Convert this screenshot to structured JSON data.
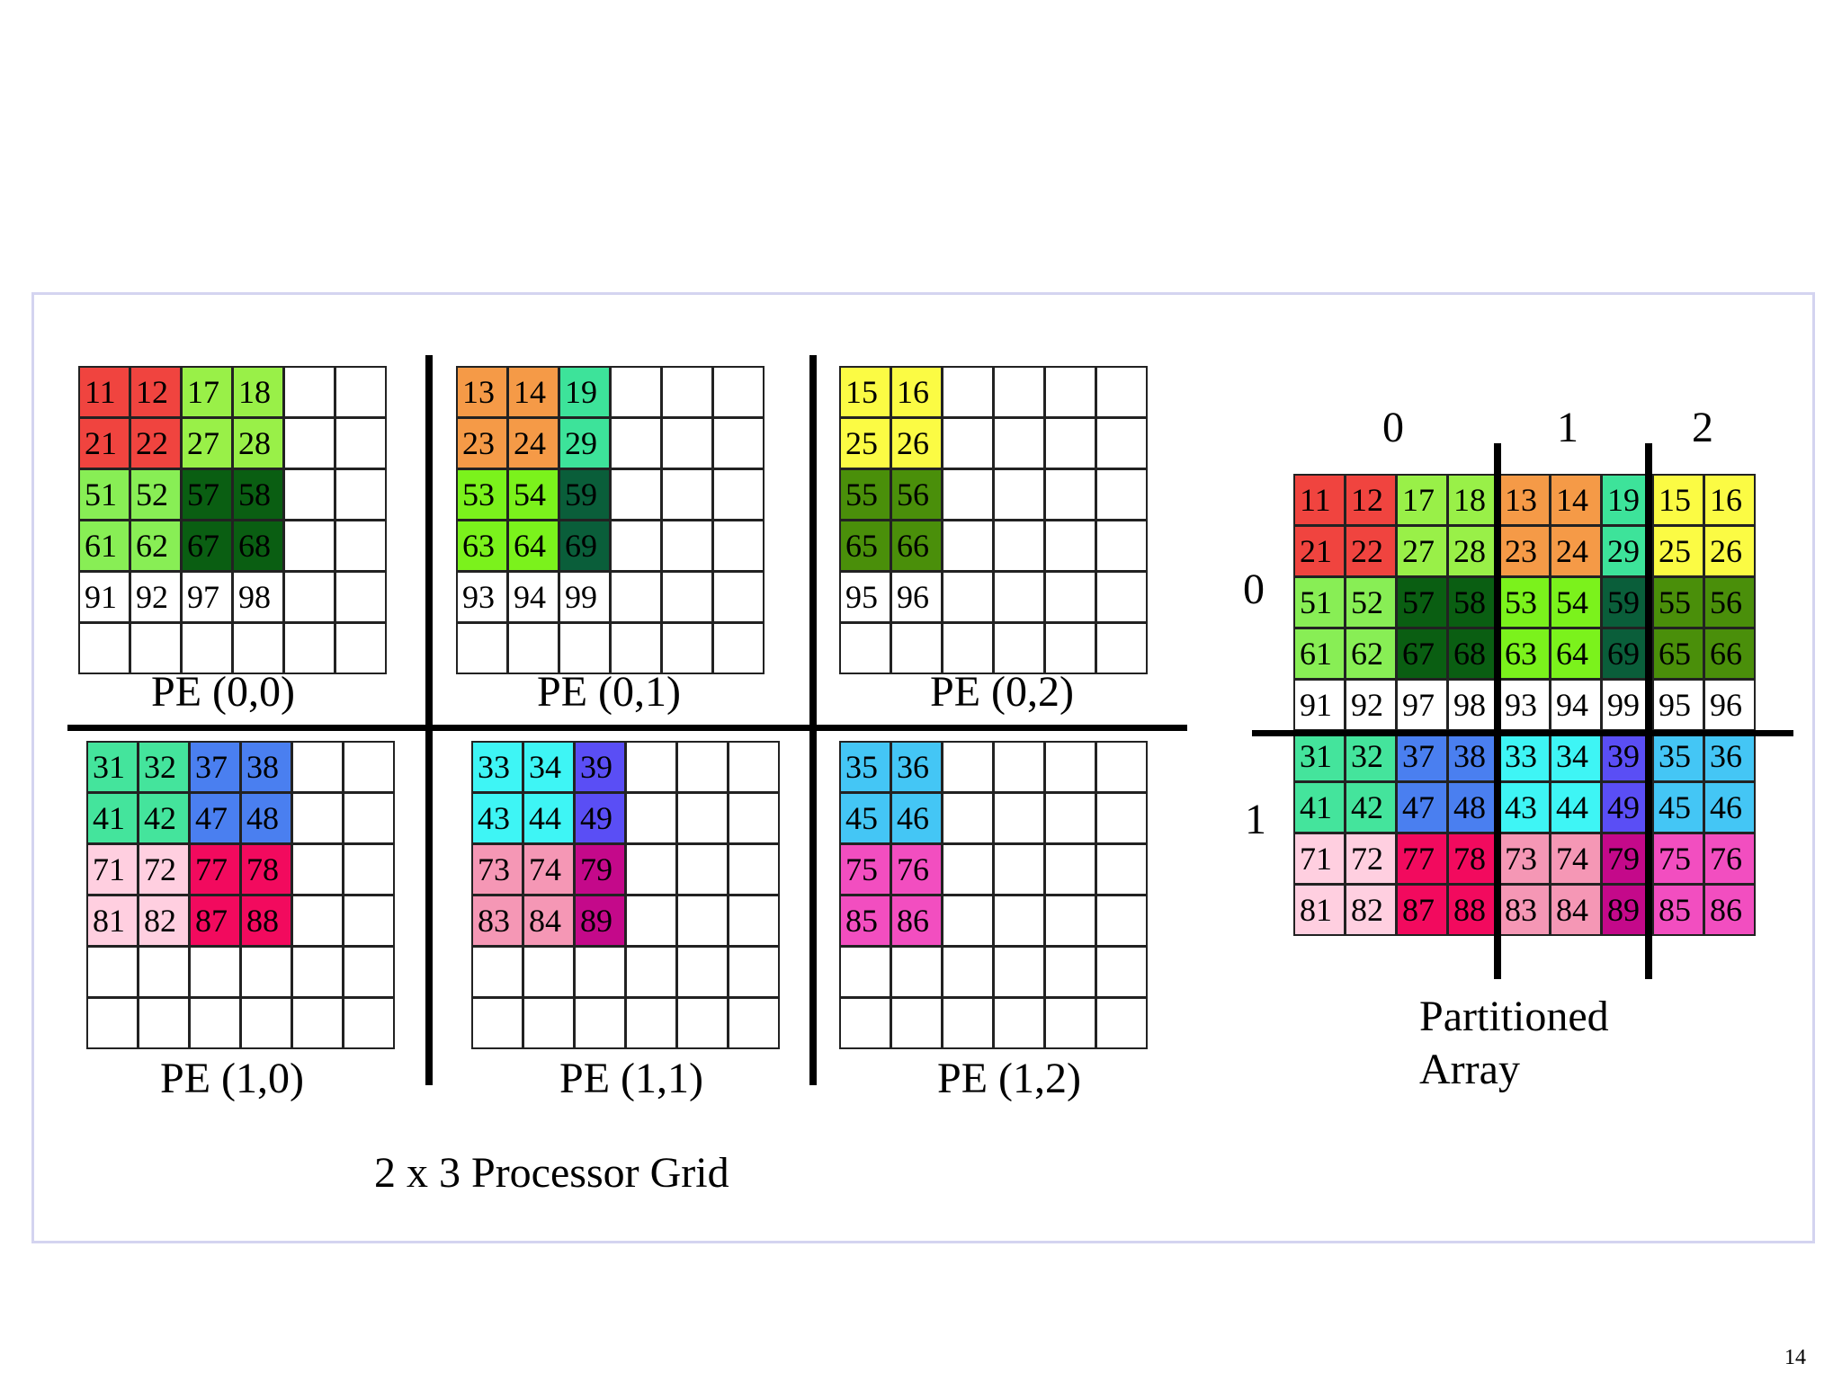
{
  "colors": {
    "r": "#f0443f",
    "lg": "#99f048",
    "g2": "#88ee55",
    "dg": "#0a5e12",
    "or": "#f59a47",
    "tl": "#3de39a",
    "br": "#7bf21c",
    "dt": "#0a5e3a",
    "ye": "#fbfb44",
    "ol": "#4a8f0a",
    "sg": "#44e49c",
    "bl": "#4a7ff0",
    "lp": "#ffcfe0",
    "cr": "#f20a5e",
    "cy": "#3ef5f5",
    "vi": "#5a4ef5",
    "pk": "#f597b5",
    "mg": "#c4098a",
    "sk": "#44c6f5",
    "hp": "#f24ec0",
    "wh": "#ffffff"
  },
  "pes": [
    {
      "label": "PE (0,0)",
      "cells": [
        [
          "11",
          "12",
          "17",
          "18",
          "",
          ""
        ],
        [
          "21",
          "22",
          "27",
          "28",
          "",
          ""
        ],
        [
          "51",
          "52",
          "57",
          "58",
          "",
          ""
        ],
        [
          "61",
          "62",
          "67",
          "68",
          "",
          ""
        ],
        [
          "91",
          "92",
          "97",
          "98",
          "",
          ""
        ],
        [
          "",
          "",
          "",
          "",
          "",
          ""
        ]
      ],
      "fills": [
        [
          "r",
          "r",
          "lg",
          "lg",
          "wh",
          "wh"
        ],
        [
          "r",
          "r",
          "lg",
          "lg",
          "wh",
          "wh"
        ],
        [
          "g2",
          "g2",
          "dg",
          "dg",
          "wh",
          "wh"
        ],
        [
          "g2",
          "g2",
          "dg",
          "dg",
          "wh",
          "wh"
        ],
        [
          "wh",
          "wh",
          "wh",
          "wh",
          "wh",
          "wh"
        ],
        [
          "wh",
          "wh",
          "wh",
          "wh",
          "wh",
          "wh"
        ]
      ]
    },
    {
      "label": "PE (0,1)",
      "cells": [
        [
          "13",
          "14",
          "19",
          "",
          "",
          ""
        ],
        [
          "23",
          "24",
          "29",
          "",
          "",
          ""
        ],
        [
          "53",
          "54",
          "59",
          "",
          "",
          ""
        ],
        [
          "63",
          "64",
          "69",
          "",
          "",
          ""
        ],
        [
          "93",
          "94",
          "99",
          "",
          "",
          ""
        ],
        [
          "",
          "",
          "",
          "",
          "",
          ""
        ]
      ],
      "fills": [
        [
          "or",
          "or",
          "tl",
          "wh",
          "wh",
          "wh"
        ],
        [
          "or",
          "or",
          "tl",
          "wh",
          "wh",
          "wh"
        ],
        [
          "br",
          "br",
          "dt",
          "wh",
          "wh",
          "wh"
        ],
        [
          "br",
          "br",
          "dt",
          "wh",
          "wh",
          "wh"
        ],
        [
          "wh",
          "wh",
          "wh",
          "wh",
          "wh",
          "wh"
        ],
        [
          "wh",
          "wh",
          "wh",
          "wh",
          "wh",
          "wh"
        ]
      ]
    },
    {
      "label": "PE (0,2)",
      "cells": [
        [
          "15",
          "16",
          "",
          "",
          "",
          ""
        ],
        [
          "25",
          "26",
          "",
          "",
          "",
          ""
        ],
        [
          "55",
          "56",
          "",
          "",
          "",
          ""
        ],
        [
          "65",
          "66",
          "",
          "",
          "",
          ""
        ],
        [
          "95",
          "96",
          "",
          "",
          "",
          ""
        ],
        [
          "",
          "",
          "",
          "",
          "",
          ""
        ]
      ],
      "fills": [
        [
          "ye",
          "ye",
          "wh",
          "wh",
          "wh",
          "wh"
        ],
        [
          "ye",
          "ye",
          "wh",
          "wh",
          "wh",
          "wh"
        ],
        [
          "ol",
          "ol",
          "wh",
          "wh",
          "wh",
          "wh"
        ],
        [
          "ol",
          "ol",
          "wh",
          "wh",
          "wh",
          "wh"
        ],
        [
          "wh",
          "wh",
          "wh",
          "wh",
          "wh",
          "wh"
        ],
        [
          "wh",
          "wh",
          "wh",
          "wh",
          "wh",
          "wh"
        ]
      ]
    },
    {
      "label": "PE (1,0)",
      "cells": [
        [
          "31",
          "32",
          "37",
          "38",
          "",
          ""
        ],
        [
          "41",
          "42",
          "47",
          "48",
          "",
          ""
        ],
        [
          "71",
          "72",
          "77",
          "78",
          "",
          ""
        ],
        [
          "81",
          "82",
          "87",
          "88",
          "",
          ""
        ],
        [
          "",
          "",
          "",
          "",
          "",
          ""
        ],
        [
          "",
          "",
          "",
          "",
          "",
          ""
        ]
      ],
      "fills": [
        [
          "sg",
          "sg",
          "bl",
          "bl",
          "wh",
          "wh"
        ],
        [
          "sg",
          "sg",
          "bl",
          "bl",
          "wh",
          "wh"
        ],
        [
          "lp",
          "lp",
          "cr",
          "cr",
          "wh",
          "wh"
        ],
        [
          "lp",
          "lp",
          "cr",
          "cr",
          "wh",
          "wh"
        ],
        [
          "wh",
          "wh",
          "wh",
          "wh",
          "wh",
          "wh"
        ],
        [
          "wh",
          "wh",
          "wh",
          "wh",
          "wh",
          "wh"
        ]
      ]
    },
    {
      "label": "PE (1,1)",
      "cells": [
        [
          "33",
          "34",
          "39",
          "",
          "",
          ""
        ],
        [
          "43",
          "44",
          "49",
          "",
          "",
          ""
        ],
        [
          "73",
          "74",
          "79",
          "",
          "",
          ""
        ],
        [
          "83",
          "84",
          "89",
          "",
          "",
          ""
        ],
        [
          "",
          "",
          "",
          "",
          "",
          ""
        ],
        [
          "",
          "",
          "",
          "",
          "",
          ""
        ]
      ],
      "fills": [
        [
          "cy",
          "cy",
          "vi",
          "wh",
          "wh",
          "wh"
        ],
        [
          "cy",
          "cy",
          "vi",
          "wh",
          "wh",
          "wh"
        ],
        [
          "pk",
          "pk",
          "mg",
          "wh",
          "wh",
          "wh"
        ],
        [
          "pk",
          "pk",
          "mg",
          "wh",
          "wh",
          "wh"
        ],
        [
          "wh",
          "wh",
          "wh",
          "wh",
          "wh",
          "wh"
        ],
        [
          "wh",
          "wh",
          "wh",
          "wh",
          "wh",
          "wh"
        ]
      ]
    },
    {
      "label": "PE (1,2)",
      "cells": [
        [
          "35",
          "36",
          "",
          "",
          "",
          ""
        ],
        [
          "45",
          "46",
          "",
          "",
          "",
          ""
        ],
        [
          "75",
          "76",
          "",
          "",
          "",
          ""
        ],
        [
          "85",
          "86",
          "",
          "",
          "",
          ""
        ],
        [
          "",
          "",
          "",
          "",
          "",
          ""
        ],
        [
          "",
          "",
          "",
          "",
          "",
          ""
        ]
      ],
      "fills": [
        [
          "sk",
          "sk",
          "wh",
          "wh",
          "wh",
          "wh"
        ],
        [
          "sk",
          "sk",
          "wh",
          "wh",
          "wh",
          "wh"
        ],
        [
          "hp",
          "hp",
          "wh",
          "wh",
          "wh",
          "wh"
        ],
        [
          "hp",
          "hp",
          "wh",
          "wh",
          "wh",
          "wh"
        ],
        [
          "wh",
          "wh",
          "wh",
          "wh",
          "wh",
          "wh"
        ],
        [
          "wh",
          "wh",
          "wh",
          "wh",
          "wh",
          "wh"
        ]
      ]
    }
  ],
  "grid_caption": "2 x 3 Processor Grid",
  "partitioned": {
    "caption_line1": "Partitioned",
    "caption_line2": "Array",
    "col_labels": [
      "0",
      "1",
      "2"
    ],
    "row_labels": [
      "0",
      "1"
    ],
    "cells": [
      [
        "11",
        "12",
        "17",
        "18",
        "13",
        "14",
        "19",
        "15",
        "16"
      ],
      [
        "21",
        "22",
        "27",
        "28",
        "23",
        "24",
        "29",
        "25",
        "26"
      ],
      [
        "51",
        "52",
        "57",
        "58",
        "53",
        "54",
        "59",
        "55",
        "56"
      ],
      [
        "61",
        "62",
        "67",
        "68",
        "63",
        "64",
        "69",
        "65",
        "66"
      ],
      [
        "91",
        "92",
        "97",
        "98",
        "93",
        "94",
        "99",
        "95",
        "96"
      ],
      [
        "31",
        "32",
        "37",
        "38",
        "33",
        "34",
        "39",
        "35",
        "36"
      ],
      [
        "41",
        "42",
        "47",
        "48",
        "43",
        "44",
        "49",
        "45",
        "46"
      ],
      [
        "71",
        "72",
        "77",
        "78",
        "73",
        "74",
        "79",
        "75",
        "76"
      ],
      [
        "81",
        "82",
        "87",
        "88",
        "83",
        "84",
        "89",
        "85",
        "86"
      ]
    ],
    "fills": [
      [
        "r",
        "r",
        "lg",
        "lg",
        "or",
        "or",
        "tl",
        "ye",
        "ye"
      ],
      [
        "r",
        "r",
        "lg",
        "lg",
        "or",
        "or",
        "tl",
        "ye",
        "ye"
      ],
      [
        "g2",
        "g2",
        "dg",
        "dg",
        "br",
        "br",
        "dt",
        "ol",
        "ol"
      ],
      [
        "g2",
        "g2",
        "dg",
        "dg",
        "br",
        "br",
        "dt",
        "ol",
        "ol"
      ],
      [
        "wh",
        "wh",
        "wh",
        "wh",
        "wh",
        "wh",
        "wh",
        "wh",
        "wh"
      ],
      [
        "sg",
        "sg",
        "bl",
        "bl",
        "cy",
        "cy",
        "vi",
        "sk",
        "sk"
      ],
      [
        "sg",
        "sg",
        "bl",
        "bl",
        "cy",
        "cy",
        "vi",
        "sk",
        "sk"
      ],
      [
        "lp",
        "lp",
        "cr",
        "cr",
        "pk",
        "pk",
        "mg",
        "hp",
        "hp"
      ],
      [
        "lp",
        "lp",
        "cr",
        "cr",
        "pk",
        "pk",
        "mg",
        "hp",
        "hp"
      ]
    ]
  },
  "page_number": "14"
}
